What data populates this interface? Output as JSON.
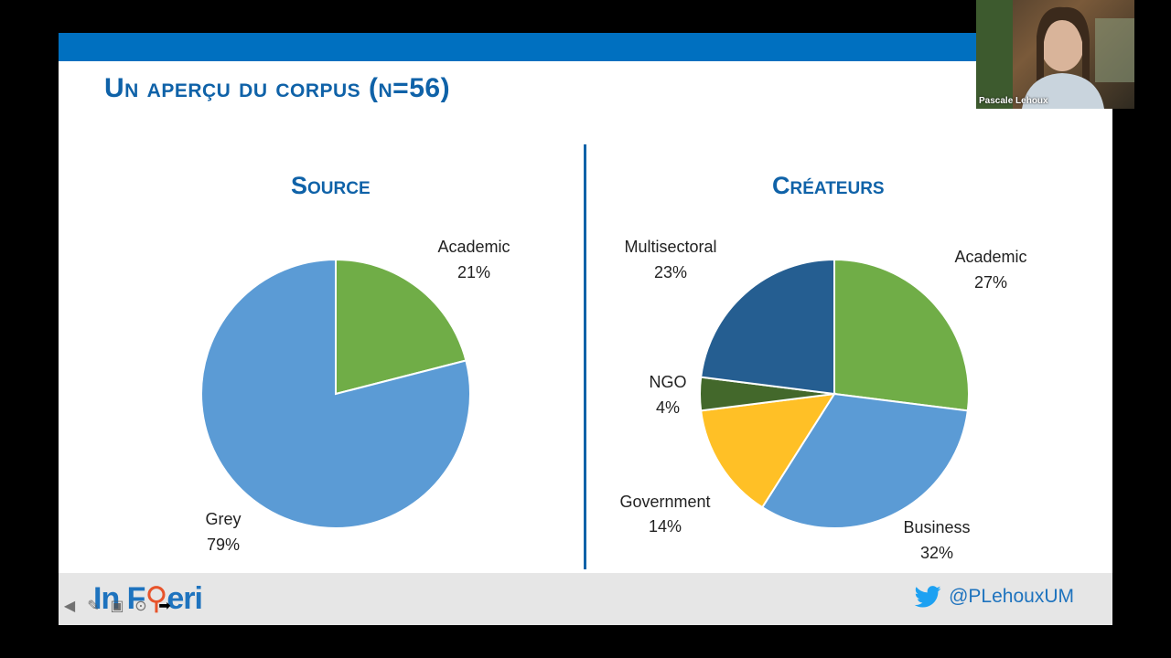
{
  "slide": {
    "title": "Un aperçu du corpus (n=56)",
    "footer": {
      "logo_text_a": "In F",
      "logo_text_b": "eri",
      "twitter_handle": "@PLehouxUM"
    }
  },
  "webcam": {
    "participant_name": "Pascale Lehoux"
  },
  "colors": {
    "title_blue": "#0F62A8",
    "green": "#70AD47",
    "light_blue": "#5B9BD5",
    "dark_blue": "#255E91",
    "dark_green": "#43682B",
    "yellow": "#FFC026"
  },
  "chart_data": [
    {
      "type": "pie",
      "title": "Source",
      "slices": [
        {
          "name": "Academic",
          "value": 21,
          "label": "21%",
          "color": "#70AD47"
        },
        {
          "name": "Grey",
          "value": 79,
          "label": "79%",
          "color": "#5B9BD5"
        }
      ]
    },
    {
      "type": "pie",
      "title": "Créateurs",
      "slices": [
        {
          "name": "Academic",
          "value": 27,
          "label": "27%",
          "color": "#70AD47"
        },
        {
          "name": "Business",
          "value": 32,
          "label": "32%",
          "color": "#5B9BD5"
        },
        {
          "name": "Government",
          "value": 14,
          "label": "14%",
          "color": "#FFC026"
        },
        {
          "name": "NGO",
          "value": 4,
          "label": "4%",
          "color": "#43682B"
        },
        {
          "name": "Multisectoral",
          "value": 23,
          "label": "23%",
          "color": "#255E91"
        }
      ]
    }
  ]
}
